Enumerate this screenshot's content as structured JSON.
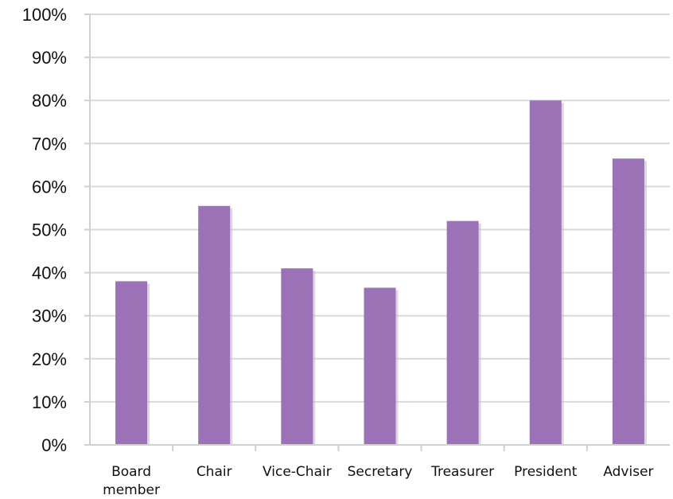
{
  "chart_data": {
    "type": "bar",
    "categories": [
      [
        "Board",
        "member"
      ],
      [
        "Chair"
      ],
      [
        "Vice-Chair"
      ],
      [
        "Secretary"
      ],
      [
        "Treasurer"
      ],
      [
        "President"
      ],
      [
        "Adviser"
      ]
    ],
    "values": [
      38,
      55.5,
      41,
      36.5,
      52,
      80,
      66.5
    ],
    "y_ticks": [
      "0%",
      "10%",
      "20%",
      "30%",
      "40%",
      "50%",
      "60%",
      "70%",
      "80%",
      "90%",
      "100%"
    ],
    "ylim": [
      0,
      100
    ],
    "grid": true,
    "colors": {
      "bar": "#9b72b5",
      "bar_shadow": "#c4b2d0"
    }
  }
}
